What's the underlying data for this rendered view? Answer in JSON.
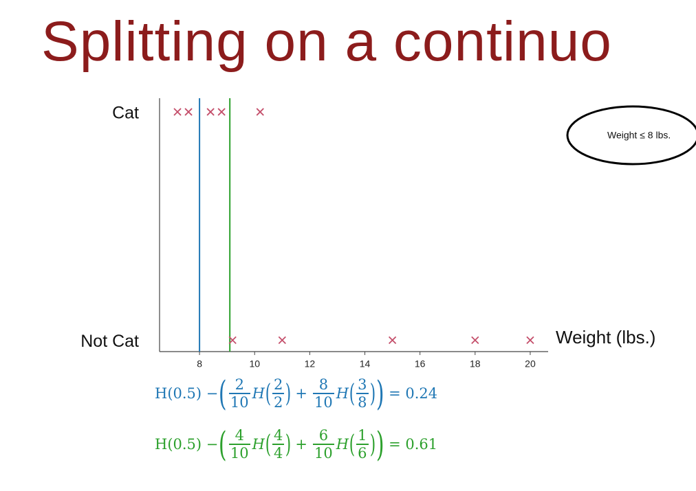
{
  "chart_data": {
    "type": "scatter",
    "title": "Splitting on a continuo",
    "x": [
      7.2,
      7.6,
      8.4,
      8.8,
      10.2,
      9.2,
      11,
      15,
      18,
      20
    ],
    "y": [
      1,
      1,
      1,
      1,
      1,
      0,
      0,
      0,
      0,
      0
    ],
    "color": "#c44e6a",
    "xlim": [
      6.55,
      20.65
    ],
    "xticks": [
      8,
      10,
      12,
      14,
      16,
      18,
      20
    ],
    "ylim": [
      -0.05,
      1.06
    ],
    "yticks": [
      {
        "value": 0,
        "label": "Not Cat"
      },
      {
        "value": 1,
        "label": "Cat"
      }
    ],
    "x_label": "Weight (lbs.)",
    "thresholds": [
      {
        "value": 8,
        "color": "#1f77b4"
      },
      {
        "value": 9.1,
        "color": "#2ca02c"
      }
    ],
    "annotation": "Weight ≤ 8 lbs."
  },
  "formulas": [
    {
      "color": "#1f77b4",
      "lead": "H(0.5) −",
      "func": "H",
      "op": "+",
      "terms": [
        {
          "weight": [
            "2",
            "10"
          ],
          "arg": [
            "2",
            "2"
          ]
        },
        {
          "weight": [
            "8",
            "10"
          ],
          "arg": [
            "3",
            "8"
          ]
        }
      ],
      "result": "= 0.24"
    },
    {
      "color": "#2ca02c",
      "lead": "H(0.5) −",
      "func": "H",
      "op": "+",
      "terms": [
        {
          "weight": [
            "4",
            "10"
          ],
          "arg": [
            "4",
            "4"
          ]
        },
        {
          "weight": [
            "6",
            "10"
          ],
          "arg": [
            "1",
            "6"
          ]
        }
      ],
      "result": "= 0.61"
    }
  ]
}
